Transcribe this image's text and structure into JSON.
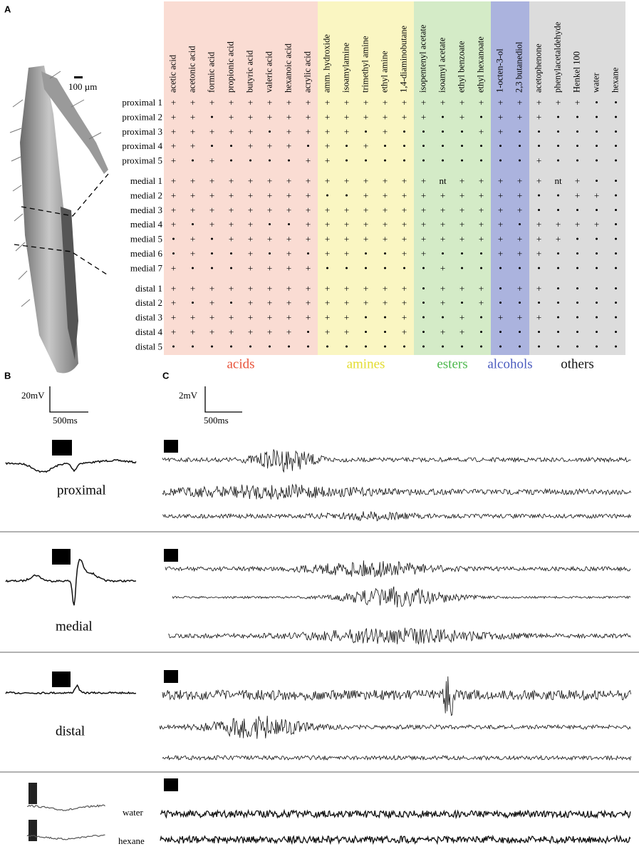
{
  "panels": {
    "a": "A",
    "b": "B",
    "c": "C"
  },
  "scale_bar_a": "100 µm",
  "table": {
    "groups": [
      {
        "name": "acids",
        "color": "#e8533a",
        "background": "#fadcd3",
        "columns": [
          "acetic acid",
          "acetonic acid",
          "formic acid",
          "propionic acid",
          "butyric acid",
          "valeric acid",
          "hexanoic acid",
          "acrylic acid"
        ]
      },
      {
        "name": "amines",
        "color": "#e3dc2e",
        "background": "#faf6c2",
        "columns": [
          "amm. hydroxide",
          "isoamylamine",
          "trimethyl amine",
          "ethyl amine",
          "1,4-diaminobutane"
        ]
      },
      {
        "name": "esters",
        "color": "#4cb84c",
        "background": "#d4ebc7",
        "columns": [
          "isopentenyl acetate",
          "isoamyl acetate",
          "ethyl benzoate",
          "ethyl hexanoate"
        ]
      },
      {
        "name": "alcohols",
        "color": "#4a5bbf",
        "background": "#abb3de",
        "columns": [
          "1-octen-3-ol",
          "2,3 butanediol"
        ]
      },
      {
        "name": "others",
        "color": "#111111",
        "background": "#dcdcdc",
        "columns": [
          "acetophenone",
          "phenylacetaldehyde",
          "Henkel 100",
          "water",
          "hexane"
        ]
      }
    ],
    "sections": [
      {
        "rows": [
          {
            "label": "proximal 1",
            "cells": [
              "+",
              "+",
              "+",
              "+",
              "+",
              "+",
              "+",
              "+",
              "+",
              "+",
              "+",
              "+",
              "+",
              "+",
              "+",
              "+",
              "+",
              "+",
              "+",
              "+",
              "+",
              "+",
              "•",
              "•"
            ]
          },
          {
            "label": "proximal 2",
            "cells": [
              "+",
              "+",
              "•",
              "+",
              "+",
              "+",
              "+",
              "+",
              "+",
              "+",
              "+",
              "+",
              "+",
              "+",
              "•",
              "+",
              "•",
              "+",
              "+",
              "+",
              "•",
              "•",
              "•",
              "•"
            ]
          },
          {
            "label": "proximal 3",
            "cells": [
              "+",
              "+",
              "+",
              "+",
              "+",
              "•",
              "+",
              "+",
              "+",
              "+",
              "•",
              "+",
              "•",
              "•",
              "•",
              "•",
              "+",
              "+",
              "•",
              "•",
              "•",
              "•",
              "•",
              "•"
            ]
          },
          {
            "label": "proximal 4",
            "cells": [
              "+",
              "+",
              "•",
              "•",
              "+",
              "+",
              "+",
              "•",
              "+",
              "•",
              "+",
              "•",
              "•",
              "•",
              "•",
              "•",
              "•",
              "•",
              "•",
              "•",
              "•",
              "•",
              "•",
              "•"
            ]
          },
          {
            "label": "proximal 5",
            "cells": [
              "+",
              "•",
              "+",
              "•",
              "•",
              "•",
              "•",
              "+",
              "+",
              "•",
              "•",
              "•",
              "•",
              "•",
              "•",
              "•",
              "•",
              "•",
              "•",
              "+",
              "•",
              "•",
              "•",
              "•"
            ]
          }
        ]
      },
      {
        "rows": [
          {
            "label": "medial 1",
            "cells": [
              "+",
              "+",
              "+",
              "+",
              "+",
              "+",
              "+",
              "+",
              "+",
              "+",
              "+",
              "+",
              "+",
              "+",
              "nt",
              "+",
              "+",
              "+",
              "+",
              "+",
              "nt",
              "+",
              "•",
              "•"
            ]
          },
          {
            "label": "medial 2",
            "cells": [
              "+",
              "+",
              "+",
              "+",
              "+",
              "+",
              "+",
              "+",
              "•",
              "•",
              "+",
              "+",
              "+",
              "+",
              "+",
              "+",
              "+",
              "+",
              "+",
              "•",
              "•",
              "+",
              "+",
              "•"
            ]
          },
          {
            "label": "medial 3",
            "cells": [
              "+",
              "+",
              "+",
              "+",
              "+",
              "+",
              "+",
              "+",
              "+",
              "+",
              "+",
              "+",
              "+",
              "+",
              "+",
              "+",
              "+",
              "+",
              "+",
              "•",
              "•",
              "•",
              "•",
              "•"
            ]
          },
          {
            "label": "medial 4",
            "cells": [
              "+",
              "•",
              "+",
              "+",
              "+",
              "•",
              "•",
              "+",
              "+",
              "+",
              "+",
              "+",
              "+",
              "+",
              "+",
              "+",
              "+",
              "+",
              "•",
              "+",
              "+",
              "+",
              "+",
              "•"
            ]
          },
          {
            "label": "medial 5",
            "cells": [
              "•",
              "+",
              "•",
              "+",
              "+",
              "+",
              "+",
              "+",
              "+",
              "+",
              "+",
              "+",
              "+",
              "+",
              "+",
              "+",
              "+",
              "+",
              "+",
              "+",
              "+",
              "•",
              "•",
              "•"
            ]
          },
          {
            "label": "medial 6",
            "cells": [
              "•",
              "+",
              "•",
              "•",
              "+",
              "•",
              "+",
              "•",
              "+",
              "+",
              "•",
              "•",
              "+",
              "+",
              "•",
              "•",
              "•",
              "+",
              "+",
              "+",
              "•",
              "•",
              "•",
              "•"
            ]
          },
          {
            "label": "medial 7",
            "cells": [
              "+",
              "•",
              "•",
              "•",
              "+",
              "+",
              "+",
              "+",
              "•",
              "•",
              "•",
              "•",
              "•",
              "•",
              "+",
              "•",
              "•",
              "•",
              "•",
              "•",
              "•",
              "•",
              "•",
              "•"
            ]
          }
        ]
      },
      {
        "rows": [
          {
            "label": "distal 1",
            "cells": [
              "+",
              "+",
              "+",
              "+",
              "+",
              "+",
              "+",
              "+",
              "+",
              "+",
              "+",
              "+",
              "+",
              "•",
              "+",
              "+",
              "+",
              "•",
              "+",
              "+",
              "•",
              "•",
              "•",
              "•"
            ]
          },
          {
            "label": "distal 2",
            "cells": [
              "+",
              "•",
              "+",
              "•",
              "+",
              "+",
              "+",
              "+",
              "+",
              "+",
              "+",
              "+",
              "+",
              "•",
              "+",
              "•",
              "+",
              "•",
              "•",
              "•",
              "•",
              "•",
              "•",
              "•"
            ]
          },
          {
            "label": "distal 3",
            "cells": [
              "+",
              "+",
              "+",
              "+",
              "+",
              "+",
              "+",
              "+",
              "+",
              "+",
              "•",
              "•",
              "+",
              "•",
              "•",
              "+",
              "•",
              "+",
              "+",
              "+",
              "•",
              "•",
              "•",
              "•"
            ]
          },
          {
            "label": "distal 4",
            "cells": [
              "+",
              "+",
              "+",
              "+",
              "+",
              "+",
              "+",
              "•",
              "+",
              "+",
              "•",
              "•",
              "+",
              "•",
              "+",
              "+",
              "•",
              "•",
              "•",
              "•",
              "•",
              "•",
              "•",
              "•"
            ]
          },
          {
            "label": "distal 5",
            "cells": [
              "•",
              "•",
              "•",
              "•",
              "•",
              "•",
              "•",
              "•",
              "•",
              "•",
              "•",
              "•",
              "•",
              "•",
              "•",
              "•",
              "•",
              "•",
              "•",
              "•",
              "•",
              "•",
              "•",
              "•"
            ]
          }
        ]
      }
    ]
  },
  "scale_b": {
    "amplitude": "20mV",
    "time": "500ms"
  },
  "scale_c": {
    "amplitude": "2mV",
    "time": "500ms"
  },
  "trace_labels": {
    "proximal": "proximal",
    "medial": "medial",
    "distal": "distal",
    "water": "water",
    "hexane": "hexane"
  }
}
